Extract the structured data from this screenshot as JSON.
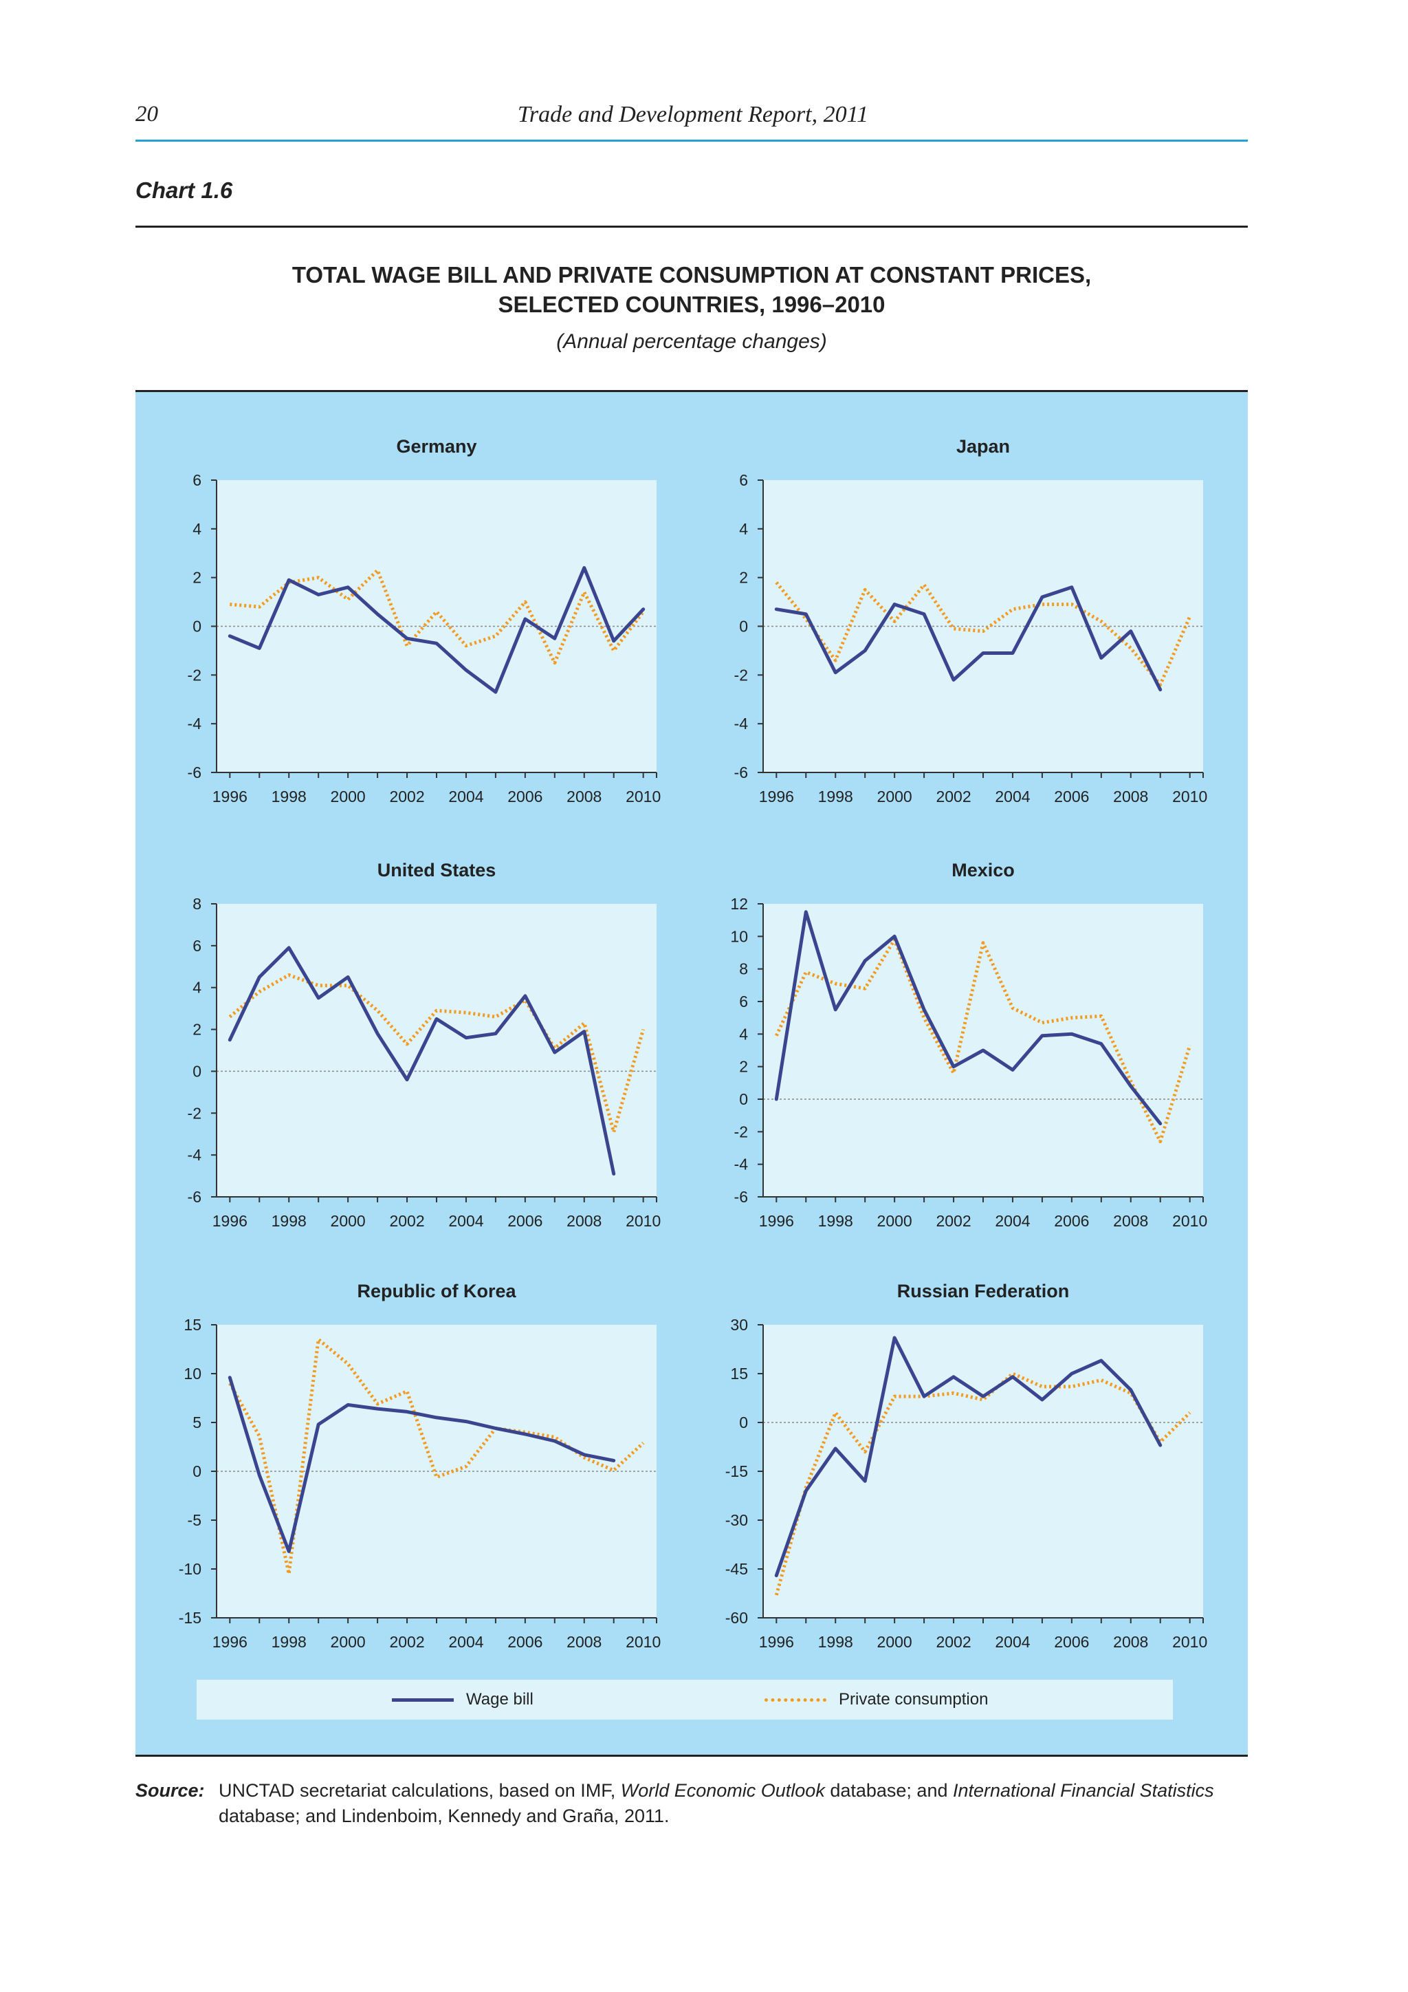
{
  "header": {
    "page_number": "20",
    "running_head": "Trade and Development Report, 2011"
  },
  "chart_label": "Chart 1.6",
  "title_line1": "TOTAL WAGE BILL AND PRIVATE CONSUMPTION AT CONSTANT PRICES,",
  "title_line2": "SELECTED COUNTRIES, 1996–2010",
  "subtitle": "(Annual percentage changes)",
  "legend": {
    "wage_bill": "Wage bill",
    "private_consumption": "Private consumption"
  },
  "colors": {
    "wage_bill": "#3a4590",
    "private_consumption": "#f29b20",
    "panel_background": "#a9def6",
    "plot_background": "#dff3fb"
  },
  "source": {
    "label": "Source:",
    "text_1": "UNCTAD secretariat calculations, based on IMF, ",
    "em_1": "World Economic Outlook",
    "text_2": " database; and ",
    "em_2": "International Financial Statistics",
    "text_3": " database; and Lindenboim, Kennedy and Graña, 2011."
  },
  "chart_data": [
    {
      "type": "line",
      "title": "Germany",
      "x": [
        1996,
        1997,
        1998,
        1999,
        2000,
        2001,
        2002,
        2003,
        2004,
        2005,
        2006,
        2007,
        2008,
        2009,
        2010
      ],
      "xticks": [
        1996,
        1998,
        2000,
        2002,
        2004,
        2006,
        2008,
        2010
      ],
      "ylim": [
        -6,
        6
      ],
      "yticks": [
        -6,
        -4,
        -2,
        0,
        2,
        4,
        6
      ],
      "series": [
        {
          "name": "Wage bill",
          "values": [
            -0.4,
            -0.9,
            1.9,
            1.3,
            1.6,
            0.5,
            -0.5,
            -0.7,
            -1.8,
            -2.7,
            0.3,
            -0.5,
            2.4,
            -0.6,
            0.7
          ]
        },
        {
          "name": "Private consumption",
          "values": [
            0.9,
            0.8,
            1.8,
            2.0,
            1.1,
            2.3,
            -0.8,
            0.6,
            -0.8,
            -0.4,
            1.0,
            -1.5,
            1.4,
            -1.0,
            0.6
          ]
        }
      ]
    },
    {
      "type": "line",
      "title": "Japan",
      "x": [
        1996,
        1997,
        1998,
        1999,
        2000,
        2001,
        2002,
        2003,
        2004,
        2005,
        2006,
        2007,
        2008,
        2009,
        2010
      ],
      "xticks": [
        1996,
        1998,
        2000,
        2002,
        2004,
        2006,
        2008,
        2010
      ],
      "ylim": [
        -6,
        6
      ],
      "yticks": [
        -6,
        -4,
        -2,
        0,
        2,
        4,
        6
      ],
      "series": [
        {
          "name": "Wage bill",
          "values": [
            0.7,
            0.5,
            -1.9,
            -1.0,
            0.9,
            0.5,
            -2.2,
            -1.1,
            -1.1,
            1.2,
            1.6,
            -1.3,
            -0.2,
            -2.6,
            null
          ]
        },
        {
          "name": "Private consumption",
          "values": [
            1.8,
            0.3,
            -1.4,
            1.5,
            0.2,
            1.7,
            -0.1,
            -0.2,
            0.7,
            0.9,
            0.9,
            0.2,
            -0.9,
            -2.4,
            0.4
          ]
        }
      ]
    },
    {
      "type": "line",
      "title": "United States",
      "x": [
        1996,
        1997,
        1998,
        1999,
        2000,
        2001,
        2002,
        2003,
        2004,
        2005,
        2006,
        2007,
        2008,
        2009,
        2010
      ],
      "xticks": [
        1996,
        1998,
        2000,
        2002,
        2004,
        2006,
        2008,
        2010
      ],
      "ylim": [
        -6,
        8
      ],
      "yticks": [
        -6,
        -4,
        -2,
        0,
        2,
        4,
        6,
        8
      ],
      "series": [
        {
          "name": "Wage bill",
          "values": [
            1.5,
            4.5,
            5.9,
            3.5,
            4.5,
            1.8,
            -0.4,
            2.5,
            1.6,
            1.8,
            3.6,
            0.9,
            1.9,
            -4.9,
            null
          ]
        },
        {
          "name": "Private consumption",
          "values": [
            2.6,
            3.8,
            4.6,
            4.1,
            4.1,
            2.9,
            1.3,
            2.9,
            2.8,
            2.6,
            3.4,
            1.1,
            2.3,
            -2.9,
            2.0
          ]
        }
      ]
    },
    {
      "type": "line",
      "title": "Mexico",
      "x": [
        1996,
        1997,
        1998,
        1999,
        2000,
        2001,
        2002,
        2003,
        2004,
        2005,
        2006,
        2007,
        2008,
        2009,
        2010
      ],
      "xticks": [
        1996,
        1998,
        2000,
        2002,
        2004,
        2006,
        2008,
        2010
      ],
      "ylim": [
        -6,
        12
      ],
      "yticks": [
        -6,
        -4,
        -2,
        0,
        2,
        4,
        6,
        8,
        10,
        12
      ],
      "series": [
        {
          "name": "Wage bill",
          "values": [
            0.0,
            11.5,
            5.5,
            8.5,
            10.0,
            5.5,
            2.0,
            3.0,
            1.8,
            3.9,
            4.0,
            3.4,
            0.8,
            -1.5,
            null
          ]
        },
        {
          "name": "Private consumption",
          "values": [
            3.9,
            7.8,
            7.1,
            6.8,
            9.8,
            5.0,
            1.6,
            9.6,
            5.6,
            4.7,
            5.0,
            5.1,
            1.1,
            -2.6,
            3.3
          ]
        }
      ]
    },
    {
      "type": "line",
      "title": "Republic of Korea",
      "x": [
        1996,
        1997,
        1998,
        1999,
        2000,
        2001,
        2002,
        2003,
        2004,
        2005,
        2006,
        2007,
        2008,
        2009,
        2010
      ],
      "xticks": [
        1996,
        1998,
        2000,
        2002,
        2004,
        2006,
        2008,
        2010
      ],
      "ylim": [
        -15,
        15
      ],
      "yticks": [
        -15,
        -10,
        -5,
        0,
        5,
        10,
        15
      ],
      "series": [
        {
          "name": "Wage bill",
          "values": [
            9.6,
            -0.4,
            -8.2,
            4.8,
            6.8,
            6.4,
            6.1,
            5.5,
            5.1,
            4.4,
            3.8,
            3.1,
            1.7,
            1.1,
            null
          ]
        },
        {
          "name": "Private consumption",
          "values": [
            9.0,
            3.6,
            -10.5,
            13.5,
            11.0,
            6.9,
            8.2,
            -0.6,
            0.5,
            4.4,
            4.0,
            3.5,
            1.4,
            0.1,
            2.9
          ]
        }
      ]
    },
    {
      "type": "line",
      "title": "Russian Federation",
      "x": [
        1996,
        1997,
        1998,
        1999,
        2000,
        2001,
        2002,
        2003,
        2004,
        2005,
        2006,
        2007,
        2008,
        2009,
        2010
      ],
      "xticks": [
        1996,
        1998,
        2000,
        2002,
        2004,
        2006,
        2008,
        2010
      ],
      "ylim": [
        -60,
        30
      ],
      "yticks": [
        -60,
        -45,
        -30,
        -15,
        0,
        15,
        30
      ],
      "series": [
        {
          "name": "Wage bill",
          "values": [
            -47,
            -21,
            -8,
            -18,
            26,
            8,
            14,
            8,
            14,
            7,
            15,
            19,
            10,
            -7,
            null
          ]
        },
        {
          "name": "Private consumption",
          "values": [
            -53,
            -20,
            3,
            -9,
            8,
            8,
            9,
            7,
            15,
            11,
            11,
            13,
            9,
            -6,
            3
          ]
        }
      ]
    }
  ]
}
